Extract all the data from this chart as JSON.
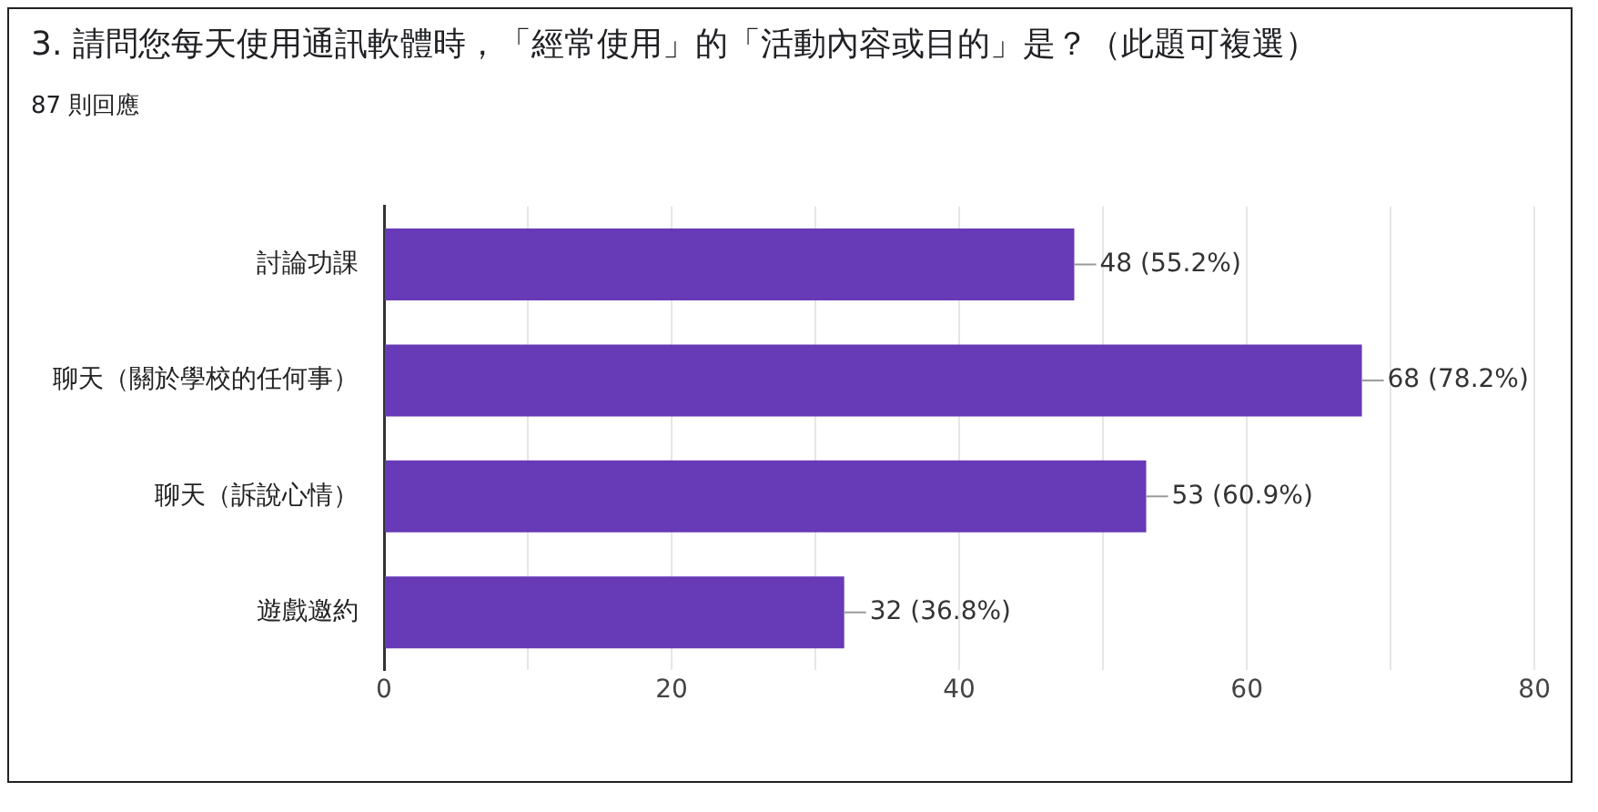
{
  "chart_data": {
    "type": "bar",
    "orientation": "horizontal",
    "title": "3. 請問您每天使用通訊軟體時，「經常使用」的「活動內容或目的」是？（此題可複選）",
    "subtitle": "87 則回應",
    "categories": [
      "討論功課",
      "聊天（關於學校的任何事）",
      "聊天（訴說心情）",
      "遊戲邀約"
    ],
    "values": [
      48,
      68,
      53,
      32
    ],
    "color": "#673ab7",
    "value_labels": [
      "48 (55.2%)",
      "68 (78.2%)",
      "53 (60.9%)",
      "32 (36.8%)"
    ],
    "xlim": [
      0,
      80
    ],
    "xticks": [
      0,
      {
        "value": 10,
        "label": null
      },
      20,
      {
        "value": 30,
        "label": null
      },
      40,
      {
        "value": 50,
        "label": null
      },
      60,
      {
        "value": 70,
        "label": null
      },
      80
    ],
    "grid": "x",
    "legend": false
  }
}
